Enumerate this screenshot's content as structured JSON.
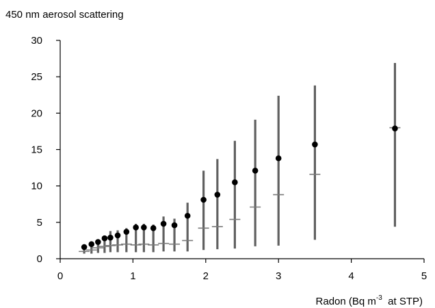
{
  "chart_data": {
    "type": "scatter",
    "title": "",
    "ylabel": "450 nm aerosol scattering",
    "xlabel": {
      "pre": "Radon (Bq m",
      "sup": "-3",
      "post": "  at STP)"
    },
    "xlim": [
      0,
      5
    ],
    "ylim": [
      0,
      30
    ],
    "xticks": [
      0,
      1,
      2,
      3,
      4,
      5
    ],
    "yticks": [
      0,
      5,
      10,
      15,
      20,
      25,
      30
    ],
    "grid": false,
    "legend": "none",
    "colors": {
      "mean_marker": "#000000",
      "median_marker": "#7a7a7a",
      "error_bar": "#606060",
      "axis": "#000000"
    },
    "series": [
      {
        "marker": "filled-circle",
        "x": [
          0.33,
          0.43,
          0.52,
          0.61,
          0.69,
          0.79,
          0.91,
          1.04,
          1.15,
          1.28,
          1.42,
          1.57,
          1.75,
          1.97,
          2.16,
          2.4,
          2.68,
          3.0,
          3.5,
          4.6
        ],
        "mean": [
          1.6,
          2.0,
          2.3,
          2.8,
          2.9,
          3.2,
          3.7,
          4.3,
          4.3,
          4.2,
          4.8,
          4.6,
          5.9,
          8.1,
          8.8,
          10.5,
          12.1,
          13.8,
          15.7,
          17.9
        ],
        "median": [
          1.0,
          1.2,
          1.5,
          1.7,
          1.8,
          1.9,
          2.0,
          1.9,
          2.0,
          1.9,
          2.1,
          2.0,
          2.5,
          4.2,
          4.4,
          5.4,
          7.1,
          8.8,
          11.6,
          18.0
        ],
        "low": [
          0.7,
          0.7,
          0.8,
          0.8,
          0.9,
          0.9,
          0.9,
          0.9,
          0.9,
          0.9,
          1.0,
          1.0,
          1.0,
          1.2,
          1.3,
          1.4,
          1.7,
          1.8,
          2.6,
          4.4
        ],
        "high": [
          1.3,
          1.9,
          2.5,
          3.2,
          3.8,
          3.9,
          4.2,
          4.8,
          4.8,
          4.7,
          5.8,
          5.5,
          7.7,
          12.1,
          13.7,
          16.2,
          19.1,
          22.4,
          23.8,
          26.9
        ]
      }
    ]
  }
}
